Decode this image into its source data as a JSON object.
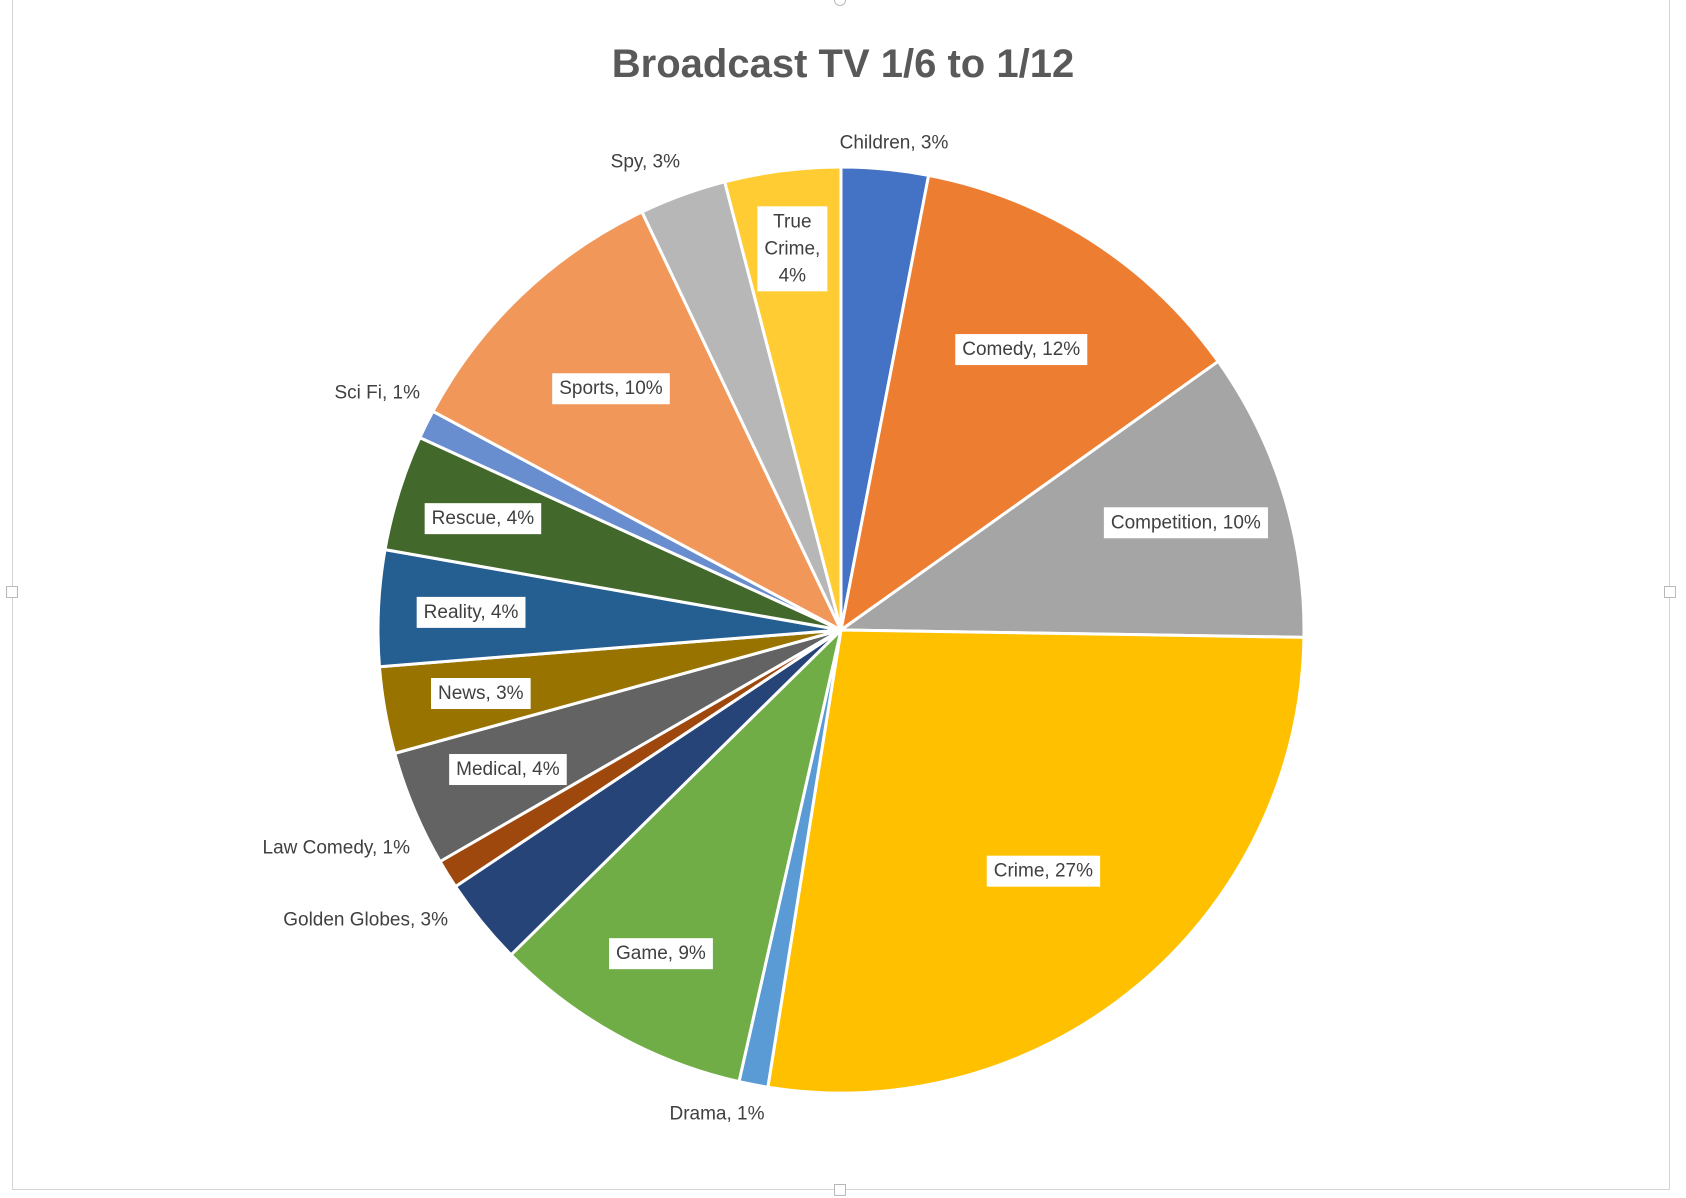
{
  "chart_data": {
    "type": "pie",
    "title": "Broadcast TV 1/6 to 1/12",
    "start_angle_deg": 0,
    "direction": "clockwise",
    "slices": [
      {
        "label": "Children",
        "value": 3,
        "display": "Children, 3%",
        "color": "#4472C4",
        "label_style": "outside"
      },
      {
        "label": "Comedy",
        "value": 12,
        "display": "Comedy, 12%",
        "color": "#ED7D31",
        "label_style": "boxed"
      },
      {
        "label": "Competition",
        "value": 10,
        "display": "Competition, 10%",
        "color": "#A5A5A5",
        "label_style": "boxed"
      },
      {
        "label": "Crime",
        "value": 27,
        "display": "Crime, 27%",
        "color": "#FFC000",
        "label_style": "boxed"
      },
      {
        "label": "Drama",
        "value": 1,
        "display": "Drama, 1%",
        "color": "#5B9BD5",
        "label_style": "outside"
      },
      {
        "label": "Game",
        "value": 9,
        "display": "Game, 9%",
        "color": "#70AD47",
        "label_style": "boxed"
      },
      {
        "label": "Golden Globes",
        "value": 3,
        "display": "Golden Globes, 3%",
        "color": "#264478",
        "label_style": "outside"
      },
      {
        "label": "Law Comedy",
        "value": 1,
        "display": "Law Comedy, 1%",
        "color": "#9E480E",
        "label_style": "outside"
      },
      {
        "label": "Medical",
        "value": 4,
        "display": "Medical, 4%",
        "color": "#636363",
        "label_style": "boxed"
      },
      {
        "label": "News",
        "value": 3,
        "display": "News, 3%",
        "color": "#997300",
        "label_style": "boxed"
      },
      {
        "label": "Reality",
        "value": 4,
        "display": "Reality, 4%",
        "color": "#255E91",
        "label_style": "boxed"
      },
      {
        "label": "Rescue",
        "value": 4,
        "display": "Rescue, 4%",
        "color": "#43682B",
        "label_style": "boxed"
      },
      {
        "label": "Sci Fi",
        "value": 1,
        "display": "Sci Fi, 1%",
        "color": "#698ED0",
        "label_style": "outside"
      },
      {
        "label": "Sports",
        "value": 10,
        "display": "Sports, 10%",
        "color": "#F1975A",
        "label_style": "boxed"
      },
      {
        "label": "Spy",
        "value": 3,
        "display": "Spy, 3%",
        "color": "#B7B7B7",
        "label_style": "outside"
      },
      {
        "label": "True Crime",
        "value": 4,
        "display": "True Crime, 4%",
        "display_lines": [
          "True",
          "Crime,",
          "4%"
        ],
        "color": "#FFCD33",
        "label_style": "boxed"
      }
    ]
  }
}
